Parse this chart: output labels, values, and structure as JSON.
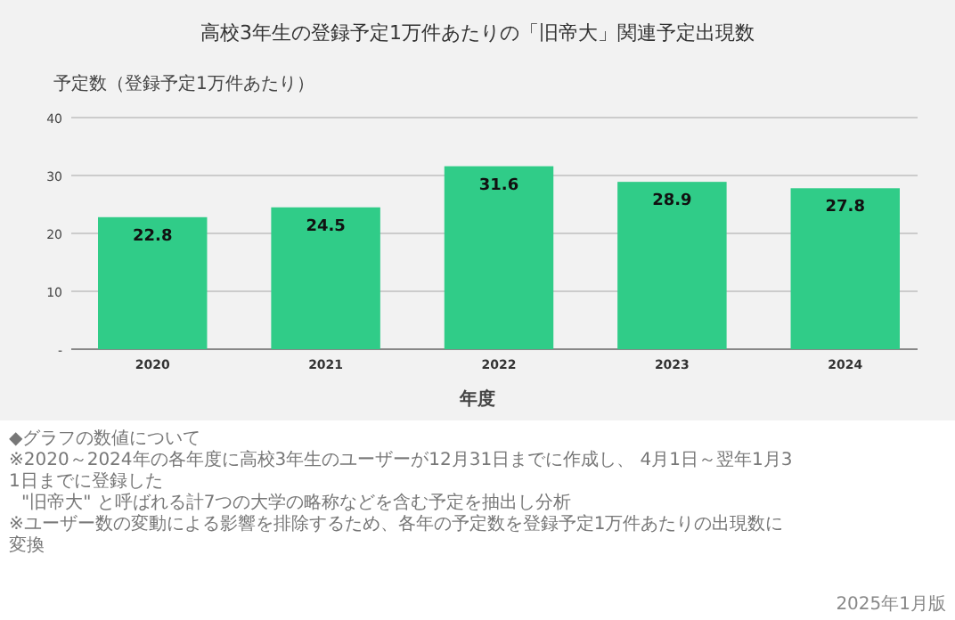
{
  "chart_data": {
    "type": "bar",
    "title": "高校3年生の登録予定1万件あたりの「旧帝大」関連予定出現数",
    "ylabel": "予定数（登録予定1万件あたり）",
    "xlabel": "年度",
    "categories": [
      "2020",
      "2021",
      "2022",
      "2023",
      "2024"
    ],
    "values": [
      22.8,
      24.5,
      31.6,
      28.9,
      27.8
    ],
    "color": "#30cc88",
    "ylim": [
      0,
      40
    ],
    "yticks": [
      {
        "value": 0,
        "label": "-"
      },
      10,
      20,
      30,
      40
    ],
    "grid": "y",
    "data_labels": true,
    "annotations": [
      "◆グラフの数値について",
      "※2020～2024年の各年度に高校3年生のユーザーが12月31日までに作成し、 4月1日～翌年1月31日までに登録した",
      "\"旧帝大\" と呼ばれる計7つの大学の略称などを含む予定を抽出し分析",
      "※ユーザー数の変動による影響を排除するため、各年の予定数を登録予定1万件あたりの出現数に変換",
      "2025年1月版"
    ]
  }
}
